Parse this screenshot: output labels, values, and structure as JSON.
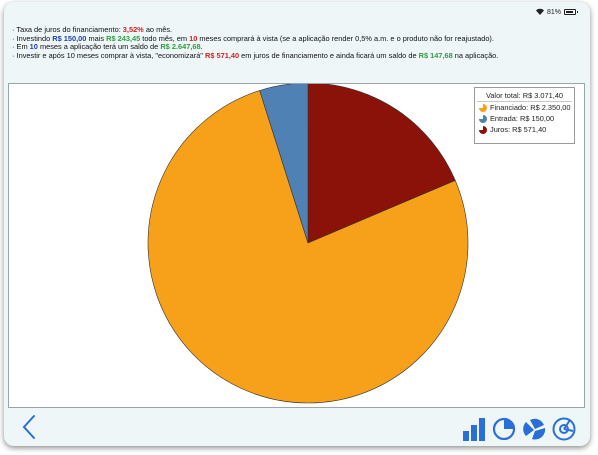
{
  "status": {
    "battery_text": "81%",
    "wifi_icon": "wifi-icon",
    "battery_icon": "battery-icon"
  },
  "info": {
    "line1": {
      "bullet": "·",
      "pre": "Taxa de juros do financiamento: ",
      "rate": "3,52%",
      "post": " ao mês."
    },
    "line2": {
      "bullet": "·",
      "pre": "Investindo ",
      "amount1": "R$ 150,00",
      "mid1": " mais ",
      "amount2": "R$ 243,45",
      "mid2": " todo mês, em ",
      "months": "10",
      "post": " meses comprará à vista (se a aplicação render 0,5% a.m. e o produto não for reajustado)."
    },
    "line3": {
      "bullet": "·",
      "pre": "Em ",
      "months": "10",
      "mid": " meses a aplicação terá um saldo de ",
      "balance": "R$ 2.647,68",
      "post": "."
    },
    "line4": {
      "bullet": "·",
      "pre": "Investir e após 10 meses comprar à vista, \"economizará\" ",
      "saving": "R$ 571,40",
      "mid": " em juros de financiamento e ainda ficará um saldo de ",
      "remaining": "R$ 147,68",
      "post": " na aplicação."
    }
  },
  "colors": {
    "blue_text": "#1e3ea8",
    "green_text": "#2e9e3e",
    "red_text": "#d42020"
  },
  "chart_data": {
    "type": "pie",
    "legend_title": "Valor total: R$ 3.071,40",
    "legend_position": "top-right",
    "start": "top, clockwise",
    "slices": [
      {
        "label": "Juros: R$ 571,40",
        "value": 571.4,
        "color": "#8a1208"
      },
      {
        "label": "Financiado: R$ 2.350,00",
        "value": 2350.0,
        "color": "#f7a01a"
      },
      {
        "label": "Entrada: R$ 150,00",
        "value": 150.0,
        "color": "#4f81b4"
      }
    ],
    "legend_order": [
      1,
      2,
      0
    ]
  },
  "toolbar": {
    "back_icon": "chevron-left-icon",
    "tools": [
      "bar-chart-icon",
      "pie-chart-icon",
      "exploded-pie-icon",
      "donut-chart-icon"
    ]
  }
}
